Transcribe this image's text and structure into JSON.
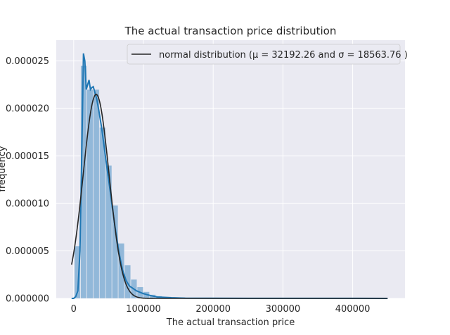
{
  "chart_data": {
    "type": "histogram",
    "title": "The actual transaction price distribution",
    "xlabel": "The actual transaction price",
    "ylabel": "frequency",
    "xlim": [
      -25000,
      475000
    ],
    "ylim": [
      0,
      2.72e-05
    ],
    "x_ticks": [
      0,
      100000,
      200000,
      300000,
      400000
    ],
    "x_tick_labels": [
      "0",
      "100000",
      "200000",
      "300000",
      "400000"
    ],
    "y_ticks": [
      0,
      5e-06,
      1e-05,
      1.5e-05,
      2e-05,
      2.5e-05
    ],
    "y_tick_labels": [
      "0.000000",
      "0.000005",
      "0.000010",
      "0.000015",
      "0.000020",
      "0.000025"
    ],
    "grid": true,
    "legend": {
      "placement": "top-right",
      "label": "normal distribution (μ =  32192.26 and σ =  18563.76 )"
    },
    "histogram": {
      "bin_width": 9000,
      "bins_start": 1000,
      "values": [
        5.5e-06,
        2.45e-05,
        2.2e-05,
        2.2e-05,
        1.8e-05,
        1.4e-05,
        9.8e-06,
        5.8e-06,
        3.5e-06,
        2e-06,
        1.2e-06,
        7e-07,
        4e-07,
        2.5e-07,
        1.5e-07,
        1e-07,
        6e-08,
        4e-08,
        3e-08,
        2e-08,
        2e-08,
        1.5e-08,
        1e-08,
        1e-08,
        1e-08,
        1e-08,
        1e-08,
        1e-08,
        1e-08,
        1e-08,
        1e-08,
        1e-08,
        1e-08,
        1e-08,
        1e-08,
        1e-08,
        1e-08,
        1e-08,
        1e-08,
        1e-08,
        1e-08,
        1e-08,
        1e-08,
        1e-08,
        1e-08,
        1e-08,
        1e-08,
        1e-08,
        1e-08,
        1e-08
      ]
    },
    "kde": {
      "x": [
        -3000,
        0,
        3000,
        6000,
        9000,
        12000,
        14000,
        16000,
        18000,
        20000,
        22000,
        24000,
        26000,
        28000,
        30000,
        33000,
        36000,
        40000,
        44000,
        48000,
        52000,
        56000,
        60000,
        65000,
        70000,
        75000,
        80000,
        90000,
        100000,
        110000,
        120000,
        140000,
        160000,
        200000,
        250000,
        300000,
        350000,
        400000,
        450000
      ],
      "y": [
        0,
        0,
        2e-07,
        8e-07,
        5e-06,
        1.7e-05,
        2.58e-05,
        2.5e-05,
        2.2e-05,
        2.25e-05,
        2.3e-05,
        2.2e-05,
        2.22e-05,
        2.23e-05,
        2.18e-05,
        2.1e-05,
        1.98e-05,
        1.8e-05,
        1.58e-05,
        1.36e-05,
        1.15e-05,
        9.2e-06,
        7.2e-06,
        4.8e-06,
        3e-06,
        1.9e-06,
        1.3e-06,
        8e-07,
        5e-07,
        3e-07,
        1.5e-07,
        7e-08,
        3e-08,
        1.5e-08,
        1e-08,
        1e-08,
        1e-08,
        1e-08,
        0
      ]
    },
    "normal_fit": {
      "mu": 32192.26,
      "sigma": 18563.76,
      "x_range": [
        -3000,
        450000
      ]
    },
    "colors": {
      "background": "#eaeaf2",
      "grid": "#ffffff",
      "hist_fill": "#92b8d9",
      "kde_line": "#1f77b4",
      "normal_line": "#262626"
    }
  }
}
